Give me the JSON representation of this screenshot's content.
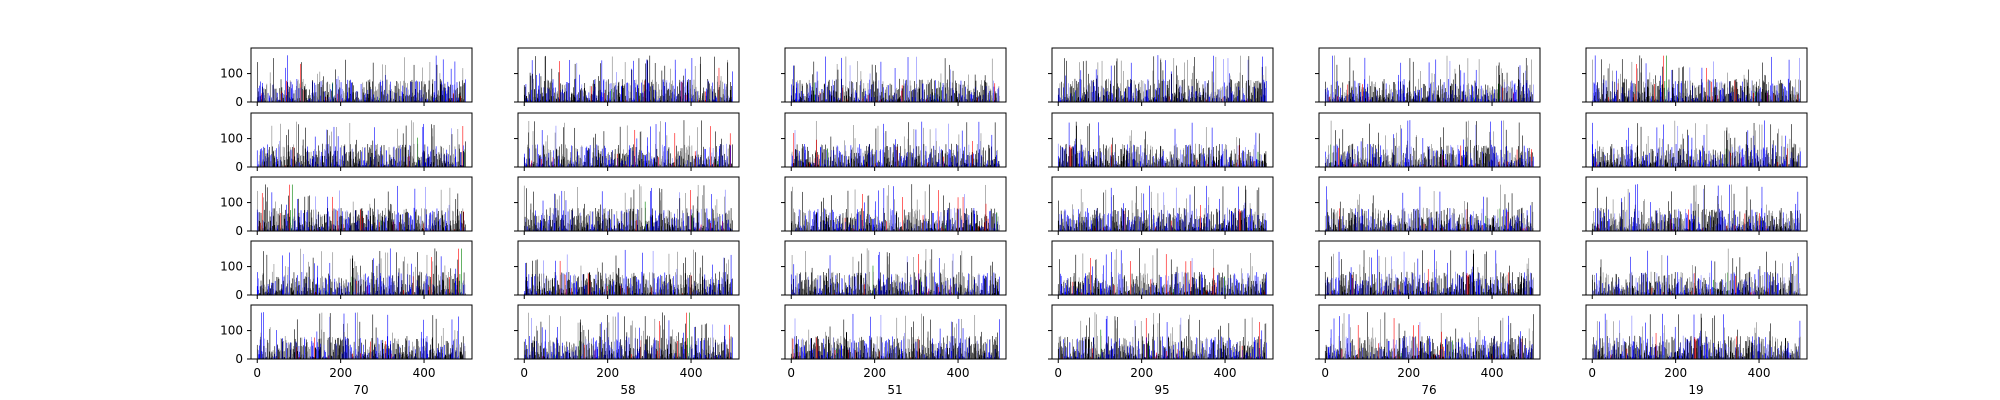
{
  "chart_data": {
    "type": "bar",
    "layout": {
      "rows": 5,
      "cols": 6,
      "sharex": true,
      "sharey": true
    },
    "xlim": [
      -15,
      515
    ],
    "ylim": [
      0,
      190
    ],
    "xticks": [
      0,
      200,
      400
    ],
    "xtick_labels": [
      "0",
      "200",
      "400"
    ],
    "yticks": [
      0,
      100
    ],
    "ytick_labels": [
      "0",
      "100"
    ],
    "column_labels": [
      "70",
      "58",
      "51",
      "95",
      "76",
      "19"
    ],
    "bars_per_panel": 500,
    "value_range_approx": [
      5,
      165
    ],
    "typical_value_approx": 55,
    "grid": false,
    "legend": "none",
    "series_colors": [
      "#000000",
      "#808080",
      "#0000ff",
      "#8080ff",
      "#ff0000",
      "#008000"
    ],
    "series_color_names": [
      "black",
      "gray",
      "blue",
      "lightblue",
      "red",
      "green"
    ]
  }
}
